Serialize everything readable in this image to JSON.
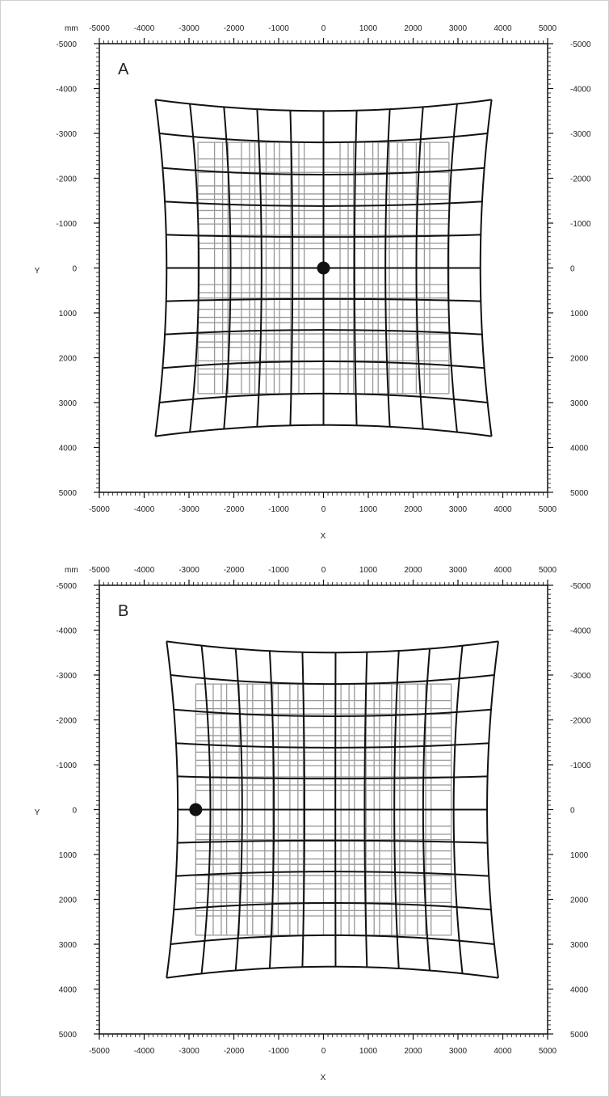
{
  "unit_label": "mm",
  "x_axis_title": "X",
  "y_axis_title": "Y",
  "axis_range": [
    -5000,
    5000
  ],
  "major_ticks": [
    -5000,
    -4000,
    -3000,
    -2000,
    -1000,
    0,
    1000,
    2000,
    3000,
    4000,
    5000
  ],
  "minor_tick_step": 100,
  "colors": {
    "distorted_grid": "#111111",
    "reference_grid": "#999999",
    "point": "#111111",
    "border": "#cfcfcf"
  },
  "panels": [
    {
      "letter": "A",
      "point": {
        "x": 0,
        "y": 0
      },
      "distorted_grid": {
        "x_lines": [
          -3750,
          -2980,
          -2220,
          -1480,
          -740,
          0,
          740,
          1480,
          2220,
          2980,
          3750
        ],
        "y_lines": [
          -3750,
          -3000,
          -2230,
          -1480,
          -740,
          0,
          740,
          1480,
          2230,
          3000,
          3750
        ],
        "bow": 250
      },
      "reference_grid": {
        "x_lines": [
          -2800,
          -2250,
          -1650,
          -1100,
          -550,
          0,
          550,
          1100,
          1650,
          2250,
          2800
        ],
        "y_lines": [
          -2800,
          -2250,
          -1650,
          -1100,
          -550,
          0,
          550,
          1100,
          1650,
          2250,
          2800
        ],
        "x_offsets": [
          -180,
          120
        ],
        "y_offsets": [
          -180,
          120
        ]
      }
    },
    {
      "letter": "B",
      "point": {
        "x": -2850,
        "y": 0
      },
      "distorted_grid": {
        "x_lines": [
          -3500,
          -2720,
          -1960,
          -1200,
          -470,
          270,
          970,
          1680,
          2370,
          3100,
          3900
        ],
        "y_lines": [
          -3750,
          -3000,
          -2230,
          -1480,
          -740,
          0,
          740,
          1480,
          2230,
          3000,
          3750
        ],
        "bow": 250
      },
      "reference_grid": {
        "x_lines": [
          -2850,
          -2280,
          -1700,
          -1130,
          -570,
          0,
          570,
          1130,
          1700,
          2280,
          2850
        ],
        "y_lines": [
          -2800,
          -2250,
          -1650,
          -1100,
          -550,
          0,
          550,
          1100,
          1650,
          2250,
          2800
        ],
        "x_offsets": [
          -180,
          120
        ],
        "y_offsets": [
          -180,
          120
        ]
      }
    }
  ]
}
